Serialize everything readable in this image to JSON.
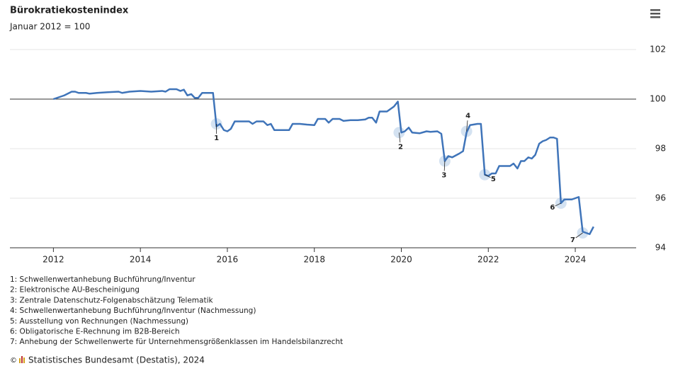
{
  "chart_data": {
    "type": "line",
    "title": "Bürokratiekostenindex",
    "subtitle": "Januar 2012 = 100",
    "x": [
      2012.0,
      2012.25,
      2012.42,
      2012.5,
      2012.58,
      2012.75,
      2012.83,
      2013.0,
      2013.25,
      2013.5,
      2013.58,
      2013.75,
      2014.0,
      2014.25,
      2014.5,
      2014.58,
      2014.67,
      2014.83,
      2014.92,
      2015.0,
      2015.08,
      2015.17,
      2015.25,
      2015.33,
      2015.42,
      2015.67,
      2015.75,
      2015.83,
      2015.92,
      2016.0,
      2016.08,
      2016.17,
      2016.33,
      2016.5,
      2016.58,
      2016.67,
      2016.83,
      2016.92,
      2017.0,
      2017.08,
      2017.25,
      2017.42,
      2017.5,
      2017.67,
      2017.83,
      2018.0,
      2018.08,
      2018.25,
      2018.33,
      2018.42,
      2018.58,
      2018.67,
      2018.83,
      2019.0,
      2019.17,
      2019.25,
      2019.33,
      2019.42,
      2019.5,
      2019.67,
      2019.83,
      2019.92,
      2020.0,
      2020.08,
      2020.17,
      2020.25,
      2020.42,
      2020.58,
      2020.67,
      2020.83,
      2020.92,
      2021.0,
      2021.08,
      2021.17,
      2021.33,
      2021.42,
      2021.5,
      2021.58,
      2021.75,
      2021.83,
      2021.92,
      2022.0,
      2022.08,
      2022.17,
      2022.25,
      2022.42,
      2022.5,
      2022.58,
      2022.67,
      2022.75,
      2022.83,
      2022.92,
      2023.0,
      2023.08,
      2023.17,
      2023.25,
      2023.33,
      2023.42,
      2023.5,
      2023.58,
      2023.67,
      2023.75,
      2023.83,
      2023.92,
      2024.0,
      2024.08,
      2024.17,
      2024.25,
      2024.33,
      2024.42
    ],
    "series": [
      {
        "name": "Bürokratiekostenindex",
        "color": "#3f74b9",
        "values": [
          100.0,
          100.15,
          100.3,
          100.3,
          100.25,
          100.25,
          100.22,
          100.25,
          100.28,
          100.3,
          100.25,
          100.3,
          100.33,
          100.3,
          100.33,
          100.3,
          100.4,
          100.4,
          100.33,
          100.38,
          100.15,
          100.2,
          100.05,
          100.05,
          100.25,
          100.25,
          98.9,
          99.0,
          98.75,
          98.7,
          98.8,
          99.1,
          99.1,
          99.1,
          99.0,
          99.1,
          99.1,
          98.95,
          99.0,
          98.75,
          98.75,
          98.75,
          99.0,
          99.0,
          98.97,
          98.95,
          99.2,
          99.2,
          99.05,
          99.2,
          99.2,
          99.12,
          99.15,
          99.15,
          99.18,
          99.25,
          99.25,
          99.05,
          99.5,
          99.5,
          99.7,
          99.9,
          98.65,
          98.7,
          98.85,
          98.65,
          98.62,
          98.7,
          98.68,
          98.7,
          98.6,
          97.5,
          97.7,
          97.65,
          97.8,
          97.9,
          98.65,
          98.95,
          99.0,
          99.0,
          96.95,
          96.9,
          97.0,
          97.0,
          97.3,
          97.3,
          97.3,
          97.4,
          97.2,
          97.5,
          97.5,
          97.65,
          97.6,
          97.75,
          98.2,
          98.3,
          98.35,
          98.45,
          98.45,
          98.4,
          95.8,
          95.95,
          95.95,
          95.95,
          96.0,
          96.05,
          94.65,
          94.6,
          94.55,
          94.85
        ]
      }
    ],
    "xlim": [
      2011.0,
      2025.4
    ],
    "xticks": [
      2012,
      2014,
      2016,
      2018,
      2020,
      2022,
      2024
    ],
    "ylim": [
      94,
      102.3
    ],
    "yticks": [
      94,
      96,
      98,
      100,
      102
    ],
    "reference_line": 100,
    "grid": true,
    "annotations": [
      {
        "label": "1",
        "x": 2015.75,
        "y": 99.0
      },
      {
        "label": "2",
        "x": 2019.95,
        "y": 98.65
      },
      {
        "label": "3",
        "x": 2021.0,
        "y": 97.5
      },
      {
        "label": "4",
        "x": 2021.5,
        "y": 98.7
      },
      {
        "label": "5",
        "x": 2021.92,
        "y": 96.95
      },
      {
        "label": "6",
        "x": 2023.67,
        "y": 95.8
      },
      {
        "label": "7",
        "x": 2024.17,
        "y": 94.6
      }
    ],
    "footnotes": [
      "1: Schwellenwertanhebung Buchführung/Inventur",
      "2: Elektronische AU-Bescheinigung",
      "3: Zentrale Datenschutz-Folgenabschätzung Telematik",
      "4: Schwellenwertanhebung Buchführung/Inventur (Nachmessung)",
      "5: Ausstellung von Rechnungen (Nachmessung)",
      "6: Obligatorische E-Rechnung im B2B-Bereich",
      "7: Anhebung der Schwellenwerte für Unternehmensgrößenklassen im Handelsbilanzrecht"
    ],
    "source": "Statistisches Bundesamt (Destatis), 2024"
  }
}
